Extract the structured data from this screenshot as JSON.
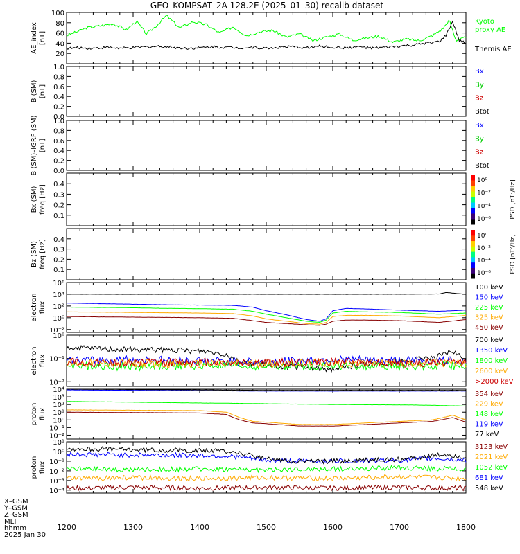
{
  "title": "GEO–KOMPSAT–2A 128.2E (2025–01–30) recalib dataset",
  "xaxis": {
    "ticks": [
      "1200",
      "1300",
      "1400",
      "1500",
      "1600",
      "1700",
      "1800"
    ],
    "tick_values": [
      1200,
      1300,
      1400,
      1500,
      1600,
      1700,
      1800
    ],
    "range": [
      1200,
      1800
    ],
    "row_labels": [
      "X–GSM",
      "Y–GSM",
      "Z–GSM",
      "MLT",
      "hhmm",
      "2025 Jan 30"
    ]
  },
  "colors": {
    "black": "#000000",
    "blue": "#0000ff",
    "green": "#00ff00",
    "red": "#cc0000",
    "orange": "#ffaa00",
    "darkred": "#880000"
  },
  "chart_data": [
    {
      "type": "line",
      "ylabel_lines": [
        "AE_index",
        "[nT]"
      ],
      "ylim": [
        0,
        100
      ],
      "ytick_values": [
        20,
        40,
        60,
        80,
        100
      ],
      "yticks": [
        "20",
        "40",
        "60",
        "80",
        "100"
      ],
      "series": [
        {
          "name": "Kyoto proxy AE",
          "legend_lines": [
            "Kyoto",
            "proxy AE"
          ],
          "color": "#00ff00",
          "x": [
            1200,
            1215,
            1230,
            1250,
            1270,
            1290,
            1305,
            1320,
            1335,
            1350,
            1370,
            1390,
            1410,
            1430,
            1450,
            1470,
            1490,
            1510,
            1530,
            1550,
            1570,
            1590,
            1610,
            1630,
            1650,
            1670,
            1690,
            1710,
            1730,
            1750,
            1765,
            1775,
            1785,
            1795,
            1800
          ],
          "values": [
            55,
            62,
            70,
            74,
            78,
            66,
            83,
            58,
            74,
            94,
            70,
            82,
            76,
            60,
            72,
            55,
            62,
            65,
            52,
            58,
            45,
            52,
            58,
            46,
            50,
            54,
            42,
            48,
            45,
            55,
            68,
            85,
            45,
            52,
            50
          ]
        },
        {
          "name": "Themis AE",
          "legend_lines": [
            "Themis AE"
          ],
          "color": "#000000",
          "x": [
            1200,
            1220,
            1240,
            1260,
            1280,
            1300,
            1320,
            1340,
            1360,
            1380,
            1400,
            1420,
            1440,
            1460,
            1480,
            1500,
            1520,
            1540,
            1560,
            1580,
            1600,
            1620,
            1640,
            1660,
            1680,
            1700,
            1720,
            1740,
            1760,
            1770,
            1780,
            1790,
            1800
          ],
          "values": [
            30,
            31,
            30,
            32,
            30,
            31,
            33,
            34,
            32,
            30,
            31,
            33,
            32,
            31,
            32,
            30,
            32,
            33,
            31,
            34,
            32,
            31,
            33,
            30,
            32,
            34,
            36,
            40,
            43,
            55,
            82,
            45,
            40
          ]
        }
      ]
    },
    {
      "type": "line",
      "ylabel_lines": [
        "B (SM)",
        "[nT]"
      ],
      "ylim": [
        0,
        1
      ],
      "ytick_values": [
        0,
        0.2,
        0.4,
        0.6,
        0.8,
        1
      ],
      "yticks": [
        "0.0",
        "0.2",
        "0.4",
        "0.6",
        "0.8",
        "1.0"
      ],
      "series": [
        {
          "name": "Bx",
          "color": "#0000ff",
          "values": []
        },
        {
          "name": "By",
          "color": "#00cc00",
          "values": []
        },
        {
          "name": "Bz",
          "color": "#cc0000",
          "values": []
        },
        {
          "name": "Btot",
          "color": "#000000",
          "values": []
        }
      ]
    },
    {
      "type": "line",
      "ylabel_lines": [
        "B (SM)–IGRF (SM)",
        "[nT]"
      ],
      "ylim": [
        0,
        1
      ],
      "ytick_values": [
        0,
        0.2,
        0.4,
        0.6,
        0.8,
        1
      ],
      "yticks": [
        "0.0",
        "0.2",
        "0.4",
        "0.6",
        "0.8",
        "1.0"
      ],
      "series": [
        {
          "name": "Bx",
          "color": "#0000ff",
          "values": []
        },
        {
          "name": "By",
          "color": "#00cc00",
          "values": []
        },
        {
          "name": "Bz",
          "color": "#cc0000",
          "values": []
        },
        {
          "name": "Btot",
          "color": "#000000",
          "values": []
        }
      ]
    },
    {
      "type": "heatmap",
      "ylabel_lines": [
        "Bx (SM)",
        "freq [Hz]"
      ],
      "ylim": [
        0,
        0.5
      ],
      "ytick_values": [
        0.1,
        0.2,
        0.3,
        0.4
      ],
      "yticks": [
        "0.1",
        "0.2",
        "0.3",
        "0.4"
      ],
      "colorbar": {
        "label": "PSD [nT²/Hz]",
        "ticks": [
          "10⁰",
          "10⁻²",
          "10⁻⁴",
          "10⁻⁶"
        ]
      },
      "values": []
    },
    {
      "type": "heatmap",
      "ylabel_lines": [
        "Bz (SM)",
        "freq [Hz]"
      ],
      "ylim": [
        0,
        0.5
      ],
      "ytick_values": [
        0.1,
        0.2,
        0.3,
        0.4
      ],
      "yticks": [
        "0.1",
        "0.2",
        "0.3",
        "0.4"
      ],
      "colorbar": {
        "label": "PSD [nT²/Hz]",
        "ticks": [
          "10⁰",
          "10⁻²",
          "10⁻⁴",
          "10⁻⁶"
        ]
      },
      "values": []
    },
    {
      "type": "line",
      "log": true,
      "ylabel_lines": [
        "electron",
        "flux"
      ],
      "ylim": [
        -2.5,
        6
      ],
      "ytick_values": [
        -2,
        0,
        2,
        4,
        6
      ],
      "yticks": [
        "10⁻²",
        "10⁰",
        "10²",
        "10⁴",
        "10⁶"
      ],
      "series": [
        {
          "name": "100 keV",
          "color": "#000000",
          "x": [
            1200,
            1300,
            1400,
            1500,
            1600,
            1700,
            1760,
            1770,
            1800
          ],
          "values": [
            4,
            4,
            4,
            4,
            4,
            4,
            4.05,
            4.3,
            4
          ]
        },
        {
          "name": "150 keV",
          "color": "#0000ff",
          "x": [
            1200,
            1250,
            1300,
            1350,
            1400,
            1450,
            1480,
            1500,
            1530,
            1560,
            1580,
            1590,
            1600,
            1620,
            1650,
            1700,
            1760,
            1800
          ],
          "values": [
            2.5,
            2.4,
            2.3,
            2.2,
            2.15,
            2.1,
            1.8,
            1.2,
            0.5,
            -0.3,
            -0.6,
            -0.2,
            1.2,
            1.6,
            1.5,
            1.3,
            1.1,
            1.3
          ]
        },
        {
          "name": "225 keV",
          "color": "#00ff00",
          "x": [
            1200,
            1250,
            1300,
            1350,
            1400,
            1450,
            1480,
            1500,
            1530,
            1560,
            1580,
            1590,
            1600,
            1620,
            1650,
            1700,
            1760,
            1800
          ],
          "values": [
            1.8,
            1.75,
            1.7,
            1.6,
            1.55,
            1.45,
            1.1,
            0.6,
            0,
            -0.6,
            -0.8,
            -0.4,
            0.8,
            1.1,
            1,
            0.9,
            0.6,
            0.8
          ]
        },
        {
          "name": "325 keV",
          "color": "#ffaa00",
          "x": [
            1200,
            1250,
            1300,
            1350,
            1400,
            1450,
            1480,
            1500,
            1530,
            1560,
            1580,
            1590,
            1600,
            1620,
            1650,
            1700,
            1760,
            1800
          ],
          "values": [
            1,
            0.95,
            0.9,
            0.85,
            0.8,
            0.7,
            0.3,
            -0.2,
            -0.6,
            -1,
            -1.1,
            -0.8,
            0.2,
            0.4,
            0.4,
            0.3,
            0,
            0.4
          ]
        },
        {
          "name": "450 keV",
          "color": "#880000",
          "x": [
            1200,
            1250,
            1300,
            1350,
            1400,
            1450,
            1480,
            1500,
            1530,
            1560,
            1580,
            1590,
            1600,
            1620,
            1650,
            1700,
            1760,
            1800
          ],
          "values": [
            0.2,
            0.15,
            0.1,
            0.05,
            0,
            -0.1,
            -0.5,
            -0.8,
            -1,
            -1.2,
            -1.3,
            -1.1,
            -0.6,
            -0.4,
            -0.4,
            -0.5,
            -0.8,
            -0.3
          ]
        }
      ]
    },
    {
      "type": "line",
      "log": true,
      "ylabel_lines": [
        "electron",
        "flux"
      ],
      "ylim": [
        -2.2,
        0
      ],
      "ytick_values": [
        -2,
        -1,
        0
      ],
      "yticks": [
        "10⁻²",
        "10⁻¹",
        "10⁰"
      ],
      "series": [
        {
          "name": "700 keV",
          "color": "#000000",
          "x": [
            1200,
            1250,
            1300,
            1350,
            1400,
            1420,
            1440,
            1460,
            1500,
            1550,
            1600,
            1650,
            1700,
            1760,
            1780,
            1800
          ],
          "values": [
            -0.55,
            -0.58,
            -0.62,
            -0.65,
            -0.68,
            -0.72,
            -0.82,
            -1.15,
            -1.3,
            -1.4,
            -1.45,
            -1.25,
            -1.15,
            -0.9,
            -0.7,
            -1.1
          ]
        },
        {
          "name": "1350 keV",
          "color": "#0000ff",
          "x": [
            1200,
            1300,
            1400,
            1500,
            1600,
            1700,
            1800
          ],
          "values": [
            -1.1,
            -1.05,
            -1.1,
            -1.15,
            -1.05,
            -1.1,
            -1.1
          ]
        },
        {
          "name": "1800 keV",
          "color": "#00ff00",
          "x": [
            1200,
            1300,
            1400,
            1500,
            1600,
            1700,
            1800
          ],
          "values": [
            -1.3,
            -1.35,
            -1.3,
            -1.35,
            -1.3,
            -1.35,
            -1.3
          ]
        },
        {
          "name": "2600 keV",
          "color": "#ffaa00",
          "x": [
            1200,
            1300,
            1400,
            1500,
            1600,
            1700,
            1800
          ],
          "values": [
            -1.2,
            -1.2,
            -1.25,
            -1.2,
            -1.2,
            -1.2,
            -1.2
          ]
        },
        {
          "name": ">2000 keV",
          "color": "#cc0000",
          "x": [
            1200,
            1300,
            1400,
            1500,
            1600,
            1700,
            1800
          ],
          "values": [
            -1.15,
            -1.2,
            -1.15,
            -1.2,
            -1.15,
            -1.2,
            -1.15
          ]
        }
      ]
    },
    {
      "type": "line",
      "log": true,
      "ylabel_lines": [
        "proton",
        "flux"
      ],
      "ylim": [
        -2.5,
        4
      ],
      "ytick_values": [
        -2,
        -1,
        0,
        1,
        2,
        3,
        4
      ],
      "yticks": [
        "10⁻²",
        "10⁻¹",
        "10⁰",
        "10¹",
        "10²",
        "10³",
        "10⁴"
      ],
      "series": [
        {
          "name": "354 keV",
          "color": "#880000",
          "x": [
            1200,
            1300,
            1400,
            1440,
            1460,
            1480,
            1500,
            1550,
            1600,
            1650,
            1700,
            1750,
            1780,
            1800
          ],
          "values": [
            1,
            0.95,
            0.9,
            0.7,
            0,
            -0.4,
            -0.5,
            -0.8,
            -0.8,
            -0.6,
            -0.4,
            -0.2,
            0.3,
            -0.3
          ]
        },
        {
          "name": "229 keV",
          "color": "#ffaa00",
          "x": [
            1200,
            1300,
            1400,
            1440,
            1460,
            1480,
            1500,
            1550,
            1600,
            1650,
            1700,
            1750,
            1780,
            1800
          ],
          "values": [
            1.3,
            1.25,
            1.2,
            1,
            0.3,
            -0.2,
            -0.3,
            -0.6,
            -0.6,
            -0.4,
            -0.2,
            0,
            0.6,
            0
          ]
        },
        {
          "name": "148 keV",
          "color": "#00ff00",
          "x": [
            1200,
            1300,
            1400,
            1500,
            1600,
            1700,
            1750,
            1800
          ],
          "values": [
            2.4,
            2.3,
            2.2,
            2.1,
            2,
            1.95,
            1.9,
            1.8
          ]
        },
        {
          "name": "119 keV",
          "color": "#0000ff",
          "x": [
            1200,
            1300,
            1400,
            1500,
            1600,
            1700,
            1800
          ],
          "values": [
            3.9,
            3.85,
            3.8,
            3.75,
            3.75,
            3.75,
            3.75
          ]
        },
        {
          "name": "77 keV",
          "color": "#000000",
          "x": [
            1200,
            1300,
            1400,
            1500,
            1600,
            1700,
            1800
          ],
          "values": [
            4,
            3.95,
            3.9,
            3.85,
            3.85,
            3.85,
            3.85
          ]
        }
      ]
    },
    {
      "type": "line",
      "log": true,
      "ylabel_lines": [
        "proton",
        "flux"
      ],
      "ylim": [
        -4.3,
        1
      ],
      "ytick_values": [
        -4,
        -3,
        -2,
        -1,
        0,
        1
      ],
      "yticks": [
        "10⁻⁴",
        "10⁻³",
        "10⁻²",
        "10⁻¹",
        "10⁰",
        "10¹"
      ],
      "series": [
        {
          "name": "3123 keV",
          "color": "#880000",
          "x": [
            1200,
            1300,
            1400,
            1500,
            1600,
            1700,
            1800
          ],
          "values": [
            -3.8,
            -3.7,
            -3.8,
            -3.7,
            -3.8,
            -3.7,
            -3.8
          ]
        },
        {
          "name": "2021 keV",
          "color": "#ffaa00",
          "x": [
            1200,
            1300,
            1400,
            1500,
            1600,
            1700,
            1800
          ],
          "values": [
            -2.8,
            -2.7,
            -2.8,
            -2.7,
            -2.8,
            -2.6,
            -2.8
          ]
        },
        {
          "name": "1052 keV",
          "color": "#00ff00",
          "x": [
            1200,
            1300,
            1400,
            1500,
            1600,
            1700,
            1800
          ],
          "values": [
            -1.8,
            -1.9,
            -1.8,
            -1.9,
            -1.8,
            -1.7,
            -1.8
          ]
        },
        {
          "name": "681 keV",
          "color": "#0000ff",
          "x": [
            1200,
            1300,
            1400,
            1450,
            1500,
            1550,
            1600,
            1700,
            1750,
            1800
          ],
          "values": [
            -0.3,
            -0.35,
            -0.4,
            -0.5,
            -0.9,
            -1,
            -1,
            -0.9,
            -0.7,
            -0.9
          ]
        },
        {
          "name": "548 keV",
          "color": "#000000",
          "x": [
            1200,
            1300,
            1400,
            1450,
            1480,
            1500,
            1550,
            1600,
            1700,
            1770,
            1800
          ],
          "values": [
            0.3,
            0.2,
            0.1,
            0,
            -0.5,
            -0.8,
            -1,
            -1,
            -0.8,
            -0.3,
            -0.6
          ]
        }
      ]
    }
  ]
}
